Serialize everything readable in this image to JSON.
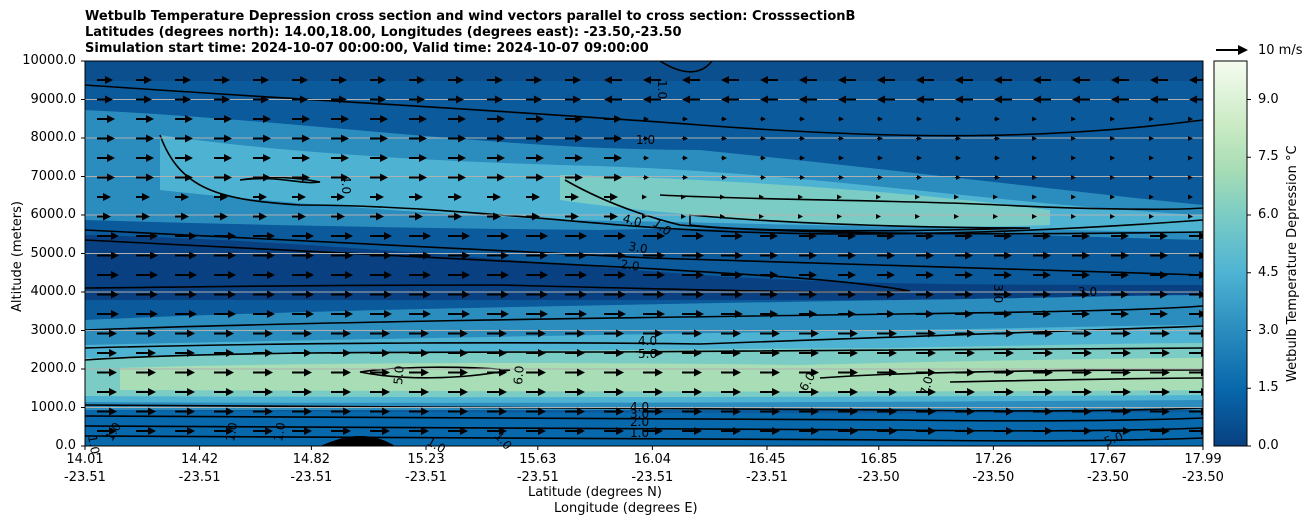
{
  "chart_data": {
    "type": "heatmap",
    "title_lines": [
      "Wetbulb Temperature Depression cross section and wind vectors parallel to cross section: CrosssectionB",
      "Latitudes (degrees north): 14.00,18.00, Longitudes (degrees east): -23.50,-23.50",
      "Simulation start time: 2024-10-07 00:00:00, Valid time: 2024-10-07 09:00:00"
    ],
    "xlabel_lat": "Latitude (degrees N)",
    "xlabel_lon": "Longitude (degrees E)",
    "ylabel": "Altitude (meters)",
    "ylim": [
      0,
      10000
    ],
    "y_ticks": [
      "0.0",
      "1000.0",
      "2000.0",
      "3000.0",
      "4000.0",
      "5000.0",
      "6000.0",
      "7000.0",
      "8000.0",
      "9000.0",
      "10000.0"
    ],
    "y_tick_values": [
      0,
      1000,
      2000,
      3000,
      4000,
      5000,
      6000,
      7000,
      8000,
      9000,
      10000
    ],
    "x_ticks": [
      {
        "lat": "14.01",
        "lon": "-23.51",
        "t": 0.0
      },
      {
        "lat": "14.42",
        "lon": "-23.51",
        "t": 0.1025
      },
      {
        "lat": "14.82",
        "lon": "-23.51",
        "t": 0.2025
      },
      {
        "lat": "15.23",
        "lon": "-23.51",
        "t": 0.305
      },
      {
        "lat": "15.63",
        "lon": "-23.51",
        "t": 0.405
      },
      {
        "lat": "16.04",
        "lon": "-23.51",
        "t": 0.5075
      },
      {
        "lat": "16.45",
        "lon": "-23.51",
        "t": 0.61
      },
      {
        "lat": "16.85",
        "lon": "-23.50",
        "t": 0.71
      },
      {
        "lat": "17.26",
        "lon": "-23.50",
        "t": 0.8125
      },
      {
        "lat": "17.67",
        "lon": "-23.50",
        "t": 0.915
      },
      {
        "lat": "17.99",
        "lon": "-23.50",
        "t": 1.0
      }
    ],
    "colorbar": {
      "label": "Wetbulb Temperature Depression °C",
      "range": [
        0,
        10
      ],
      "ticks": [
        "0.0",
        "1.5",
        "3.0",
        "4.5",
        "6.0",
        "7.5",
        "9.0"
      ],
      "tick_values": [
        0,
        1.5,
        3,
        4.5,
        6,
        7.5,
        9
      ],
      "colors": [
        "#084081",
        "#0868ac",
        "#2b8cbe",
        "#4eb3d3",
        "#7bccc4",
        "#a8ddb5",
        "#ccebc5",
        "#e0f3db",
        "#f7fcf0"
      ]
    },
    "wind_reference": {
      "label": "10 m/s"
    },
    "contour_labels": [
      "1.0",
      "1.0",
      "1.0",
      "1.0",
      "1.0",
      "1.0",
      "1.0",
      "1.0",
      "1.0",
      "2.0",
      "3.0",
      "4.0",
      "4.0",
      "4.0",
      "5.0",
      "3.0",
      "2.0",
      "1.0",
      "4.0",
      "5.0",
      "6.0",
      "6.0",
      "7.0",
      "3.0",
      "3.0",
      "5.0"
    ]
  }
}
